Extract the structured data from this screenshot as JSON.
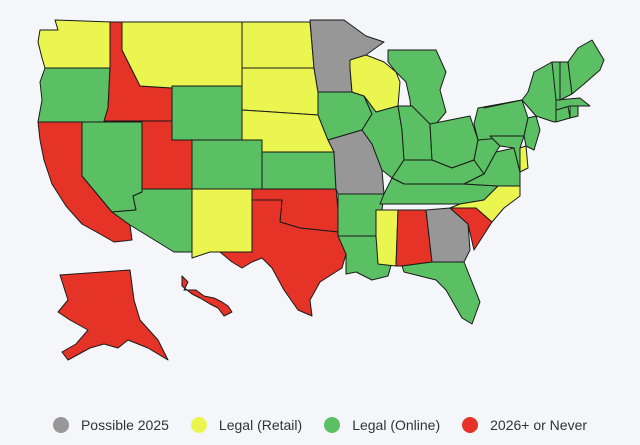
{
  "legend": [
    {
      "key": "possible",
      "label": "Possible 2025",
      "color": "#979797"
    },
    {
      "key": "retail",
      "label": "Legal (Retail)",
      "color": "#eaf550"
    },
    {
      "key": "online",
      "label": "Legal (Online)",
      "color": "#5bbf64"
    },
    {
      "key": "never",
      "label": "2026+ or Never",
      "color": "#e63328"
    }
  ],
  "states": [
    {
      "code": "WA",
      "status": "retail"
    },
    {
      "code": "OR",
      "status": "online"
    },
    {
      "code": "CA",
      "status": "never"
    },
    {
      "code": "ID",
      "status": "never"
    },
    {
      "code": "NV",
      "status": "online"
    },
    {
      "code": "UT",
      "status": "never"
    },
    {
      "code": "AZ",
      "status": "online"
    },
    {
      "code": "MT",
      "status": "retail"
    },
    {
      "code": "WY",
      "status": "online"
    },
    {
      "code": "CO",
      "status": "online"
    },
    {
      "code": "NM",
      "status": "retail"
    },
    {
      "code": "ND",
      "status": "retail"
    },
    {
      "code": "SD",
      "status": "retail"
    },
    {
      "code": "NE",
      "status": "retail"
    },
    {
      "code": "KS",
      "status": "online"
    },
    {
      "code": "OK",
      "status": "never"
    },
    {
      "code": "TX",
      "status": "never"
    },
    {
      "code": "MN",
      "status": "possible"
    },
    {
      "code": "IA",
      "status": "online"
    },
    {
      "code": "MO",
      "status": "possible"
    },
    {
      "code": "AR",
      "status": "online"
    },
    {
      "code": "LA",
      "status": "online"
    },
    {
      "code": "WI",
      "status": "retail"
    },
    {
      "code": "IL",
      "status": "online"
    },
    {
      "code": "MI",
      "status": "online"
    },
    {
      "code": "IN",
      "status": "online"
    },
    {
      "code": "OH",
      "status": "online"
    },
    {
      "code": "KY",
      "status": "online"
    },
    {
      "code": "TN",
      "status": "online"
    },
    {
      "code": "MS",
      "status": "retail"
    },
    {
      "code": "AL",
      "status": "never"
    },
    {
      "code": "GA",
      "status": "possible"
    },
    {
      "code": "FL",
      "status": "online"
    },
    {
      "code": "SC",
      "status": "never"
    },
    {
      "code": "NC",
      "status": "retail"
    },
    {
      "code": "VA",
      "status": "online"
    },
    {
      "code": "WV",
      "status": "online"
    },
    {
      "code": "PA",
      "status": "online"
    },
    {
      "code": "NY",
      "status": "online"
    },
    {
      "code": "NJ",
      "status": "online"
    },
    {
      "code": "DE",
      "status": "retail"
    },
    {
      "code": "MD",
      "status": "online"
    },
    {
      "code": "CT",
      "status": "online"
    },
    {
      "code": "RI",
      "status": "online"
    },
    {
      "code": "MA",
      "status": "online"
    },
    {
      "code": "VT",
      "status": "online"
    },
    {
      "code": "NH",
      "status": "online"
    },
    {
      "code": "ME",
      "status": "online"
    },
    {
      "code": "AK",
      "status": "never"
    },
    {
      "code": "HI",
      "status": "never"
    }
  ]
}
